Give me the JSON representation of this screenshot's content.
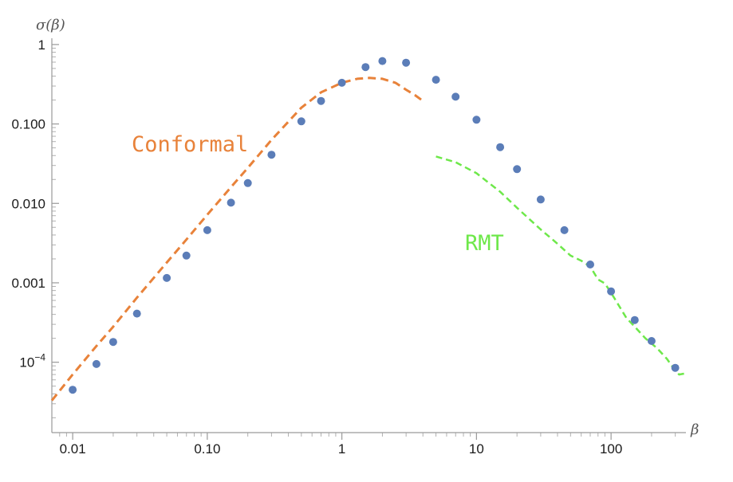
{
  "chart_data": {
    "type": "scatter",
    "scale": {
      "x": "log",
      "y": "log"
    },
    "xlabel": "β",
    "ylabel": "σ(β)",
    "xlim": [
      0.007,
      360
    ],
    "ylim": [
      1.3e-05,
      1.2
    ],
    "x_ticks": [
      {
        "value": 0.01,
        "label": "0.01"
      },
      {
        "value": 0.1,
        "label": "0.10"
      },
      {
        "value": 1,
        "label": "1"
      },
      {
        "value": 10,
        "label": "10"
      },
      {
        "value": 100,
        "label": "100"
      }
    ],
    "y_ticks": [
      {
        "value": 0.0001,
        "label": "10",
        "sup": "−4"
      },
      {
        "value": 0.001,
        "label": "0.001"
      },
      {
        "value": 0.01,
        "label": "0.010"
      },
      {
        "value": 0.1,
        "label": "0.100"
      },
      {
        "value": 1,
        "label": "1"
      }
    ],
    "colors": {
      "points": "#5b7db8",
      "conformal": "#e8823a",
      "rmt": "#6ee84a",
      "axis": "#9a9a9a"
    },
    "series": [
      {
        "name": "",
        "style": "points",
        "x": [
          0.01,
          0.015,
          0.02,
          0.03,
          0.05,
          0.07,
          0.1,
          0.15,
          0.2,
          0.3,
          0.5,
          0.7,
          1,
          1.5,
          2,
          3,
          5,
          7,
          10,
          15,
          20,
          30,
          45,
          70,
          100,
          150,
          200,
          300
        ],
        "y": [
          4.5e-05,
          9.5e-05,
          0.00018,
          0.00041,
          0.00115,
          0.0022,
          0.0046,
          0.0102,
          0.018,
          0.041,
          0.108,
          0.195,
          0.33,
          0.52,
          0.62,
          0.59,
          0.36,
          0.22,
          0.113,
          0.051,
          0.027,
          0.0112,
          0.0046,
          0.0017,
          0.00078,
          0.00034,
          0.000185,
          8.5e-05
        ]
      },
      {
        "name": "Conformal",
        "style": "dashed",
        "x": [
          0.007,
          0.01,
          0.015,
          0.02,
          0.03,
          0.05,
          0.07,
          0.1,
          0.15,
          0.2,
          0.3,
          0.5,
          0.7,
          1,
          1.3,
          1.6,
          2,
          2.5,
          3,
          3.5,
          4
        ],
        "y": [
          3.3e-05,
          7e-05,
          0.00016,
          0.00028,
          0.00065,
          0.0018,
          0.0035,
          0.0072,
          0.016,
          0.028,
          0.063,
          0.16,
          0.25,
          0.33,
          0.37,
          0.38,
          0.37,
          0.33,
          0.27,
          0.23,
          0.195
        ]
      },
      {
        "name": "RMT",
        "style": "dashed",
        "x": [
          5,
          7,
          10,
          15,
          20,
          30,
          40,
          50,
          60,
          70,
          80,
          90,
          100,
          130,
          150,
          180,
          220,
          260,
          300,
          320,
          350
        ],
        "y": [
          0.039,
          0.033,
          0.024,
          0.014,
          0.0088,
          0.0047,
          0.0031,
          0.0022,
          0.0019,
          0.0016,
          0.0011,
          0.00098,
          0.00075,
          0.00036,
          0.00028,
          0.0002,
          0.00015,
          0.00011,
          7.8e-05,
          7e-05,
          7.2e-05
        ]
      }
    ],
    "annotations": [
      {
        "text": "Conformal",
        "color": "#e8823a"
      },
      {
        "text": "RMT",
        "color": "#6ee84a"
      }
    ]
  }
}
